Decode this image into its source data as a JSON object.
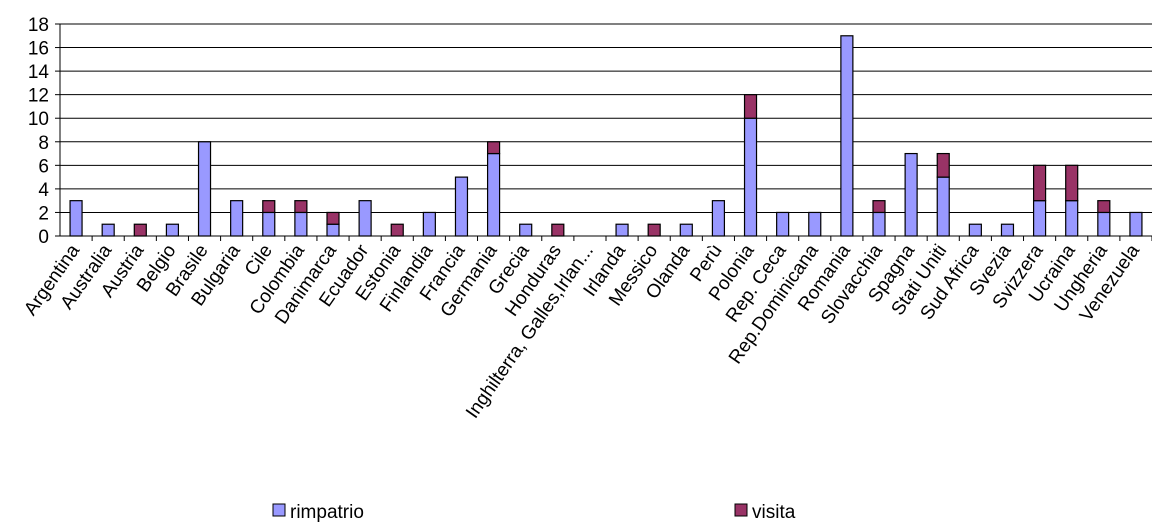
{
  "chart_data": {
    "type": "bar",
    "stacked": true,
    "categories": [
      "Argentina",
      "Australia",
      "Austria",
      "Belgio",
      "Brasile",
      "Bulgaria",
      "Cile",
      "Colombia",
      "Danimarca",
      "Ecuador",
      "Estonia",
      "Finlandia",
      "Francia",
      "Germania",
      "Grecia",
      "Honduras",
      "Inghilterra, Galles,Irlan...",
      "Irlanda",
      "Messico",
      "Olanda",
      "Perù",
      "Polonia",
      "Rep. Ceca",
      "Rep.Dominicana",
      "Romania",
      "Slovacchia",
      "Spagna",
      "Stati Uniti",
      "Sud Africa",
      "Svezia",
      "Svizzera",
      "Ucraina",
      "Ungheria",
      "Venezuela"
    ],
    "series": [
      {
        "name": "rimpatrio",
        "color": "#9999ff",
        "values": [
          3,
          1,
          0,
          1,
          8,
          3,
          2,
          2,
          1,
          3,
          0,
          2,
          5,
          7,
          1,
          0,
          0,
          1,
          0,
          1,
          3,
          10,
          2,
          2,
          17,
          2,
          7,
          5,
          1,
          1,
          3,
          3,
          2,
          2
        ]
      },
      {
        "name": "visita",
        "color": "#993366",
        "values": [
          0,
          0,
          1,
          0,
          0,
          0,
          1,
          1,
          1,
          0,
          1,
          0,
          0,
          1,
          0,
          1,
          0,
          0,
          1,
          0,
          0,
          2,
          0,
          0,
          0,
          1,
          0,
          2,
          0,
          0,
          3,
          3,
          1,
          0
        ]
      }
    ],
    "ylim": [
      0,
      18
    ],
    "yticks": [
      0,
      2,
      4,
      6,
      8,
      10,
      12,
      14,
      16,
      18
    ],
    "grid": true,
    "legend": "bottom"
  }
}
